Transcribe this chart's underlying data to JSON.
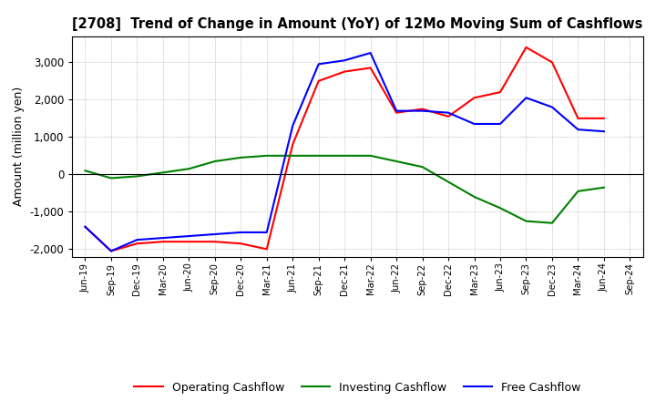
{
  "title": "[2708]  Trend of Change in Amount (YoY) of 12Mo Moving Sum of Cashflows",
  "ylabel": "Amount (million yen)",
  "x_labels": [
    "Jun-19",
    "Sep-19",
    "Dec-19",
    "Mar-20",
    "Jun-20",
    "Sep-20",
    "Dec-20",
    "Mar-21",
    "Jun-21",
    "Sep-21",
    "Dec-21",
    "Mar-22",
    "Jun-22",
    "Sep-22",
    "Dec-22",
    "Mar-23",
    "Jun-23",
    "Sep-23",
    "Dec-23",
    "Mar-24",
    "Jun-24",
    "Sep-24"
  ],
  "operating": [
    -1400,
    -2050,
    -1850,
    -1800,
    -1800,
    -1800,
    -1850,
    -2000,
    800,
    2500,
    2750,
    2850,
    1650,
    1750,
    1550,
    2050,
    2200,
    3400,
    3000,
    1500,
    1500,
    null
  ],
  "investing": [
    100,
    -100,
    -50,
    50,
    150,
    350,
    450,
    500,
    500,
    500,
    500,
    500,
    350,
    200,
    -200,
    -600,
    -900,
    -1250,
    -1300,
    -450,
    -350,
    null
  ],
  "free": [
    -1400,
    -2050,
    -1750,
    -1700,
    -1650,
    -1600,
    -1550,
    -1550,
    1300,
    2950,
    3050,
    3250,
    1700,
    1700,
    1650,
    1350,
    1350,
    2050,
    1800,
    1200,
    1150,
    null
  ],
  "ylim": [
    -2200,
    3700
  ],
  "yticks": [
    -2000,
    -1000,
    0,
    1000,
    2000,
    3000
  ],
  "colors": {
    "operating": "#ff0000",
    "investing": "#008000",
    "free": "#0000ff"
  },
  "legend_labels": [
    "Operating Cashflow",
    "Investing Cashflow",
    "Free Cashflow"
  ],
  "background": "#ffffff",
  "grid_color": "#999999"
}
